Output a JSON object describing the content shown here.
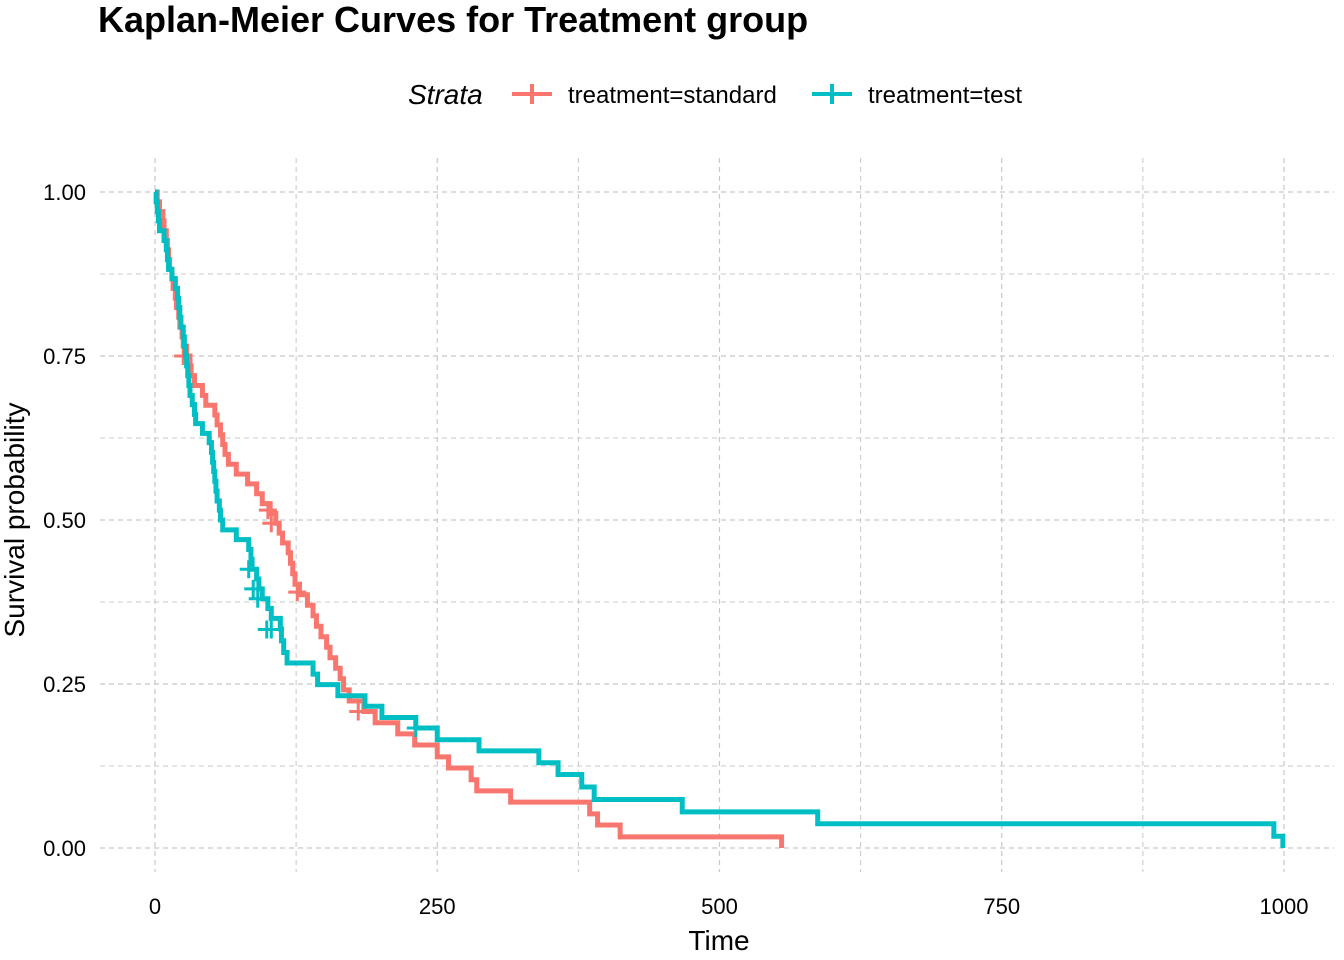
{
  "chart_data": {
    "type": "line",
    "title": "Kaplan-Meier Curves for Treatment group",
    "xlabel": "Time",
    "ylabel": "Survival probability",
    "xlim": [
      0,
      1000
    ],
    "ylim": [
      0,
      1
    ],
    "x_ticks": [
      0,
      250,
      500,
      750,
      1000
    ],
    "x_tick_labels": [
      "0",
      "250",
      "500",
      "750",
      "1000"
    ],
    "y_ticks": [
      0,
      0.25,
      0.5,
      0.75,
      1
    ],
    "y_tick_labels": [
      "0.00",
      "0.25",
      "0.50",
      "0.75",
      "1.00"
    ],
    "grid": true,
    "legend": {
      "title": "Strata",
      "position": "top"
    },
    "series": [
      {
        "name": "treatment=standard",
        "color": "#F8766D",
        "step": [
          [
            0,
            1.0
          ],
          [
            2,
            0.985
          ],
          [
            4,
            0.97
          ],
          [
            7,
            0.956
          ],
          [
            8,
            0.941
          ],
          [
            10,
            0.926
          ],
          [
            11,
            0.912
          ],
          [
            12,
            0.897
          ],
          [
            13,
            0.882
          ],
          [
            15,
            0.868
          ],
          [
            16,
            0.853
          ],
          [
            18,
            0.838
          ],
          [
            19,
            0.824
          ],
          [
            21,
            0.809
          ],
          [
            22,
            0.794
          ],
          [
            24,
            0.779
          ],
          [
            25,
            0.765
          ],
          [
            28,
            0.75
          ],
          [
            31,
            0.735
          ],
          [
            32,
            0.72
          ],
          [
            35,
            0.705
          ],
          [
            42,
            0.69
          ],
          [
            45,
            0.675
          ],
          [
            53,
            0.66
          ],
          [
            55,
            0.645
          ],
          [
            58,
            0.63
          ],
          [
            60,
            0.615
          ],
          [
            62,
            0.6
          ],
          [
            65,
            0.585
          ],
          [
            72,
            0.57
          ],
          [
            82,
            0.555
          ],
          [
            90,
            0.54
          ],
          [
            95,
            0.525
          ],
          [
            102,
            0.51
          ],
          [
            107,
            0.495
          ],
          [
            110,
            0.48
          ],
          [
            113,
            0.465
          ],
          [
            118,
            0.45
          ],
          [
            120,
            0.434
          ],
          [
            122,
            0.418
          ],
          [
            124,
            0.402
          ],
          [
            128,
            0.386
          ],
          [
            135,
            0.37
          ],
          [
            140,
            0.354
          ],
          [
            143,
            0.338
          ],
          [
            147,
            0.322
          ],
          [
            152,
            0.306
          ],
          [
            155,
            0.29
          ],
          [
            160,
            0.274
          ],
          [
            164,
            0.258
          ],
          [
            167,
            0.241
          ],
          [
            172,
            0.224
          ],
          [
            185,
            0.208
          ],
          [
            195,
            0.191
          ],
          [
            215,
            0.174
          ],
          [
            230,
            0.157
          ],
          [
            250,
            0.139
          ],
          [
            260,
            0.122
          ],
          [
            280,
            0.104
          ],
          [
            285,
            0.087
          ],
          [
            315,
            0.07
          ],
          [
            385,
            0.052
          ],
          [
            392,
            0.035
          ],
          [
            412,
            0.017
          ],
          [
            555,
            0.0
          ]
        ],
        "censored": [
          [
            25,
            0.75
          ],
          [
            100,
            0.515
          ],
          [
            103,
            0.495
          ],
          [
            126,
            0.39
          ],
          [
            180,
            0.208
          ]
        ]
      },
      {
        "name": "treatment=test",
        "color": "#00BFC4",
        "step": [
          [
            0,
            1.0
          ],
          [
            1,
            0.985
          ],
          [
            2,
            0.97
          ],
          [
            3,
            0.956
          ],
          [
            4,
            0.941
          ],
          [
            8,
            0.926
          ],
          [
            10,
            0.912
          ],
          [
            11,
            0.897
          ],
          [
            12,
            0.882
          ],
          [
            15,
            0.868
          ],
          [
            18,
            0.853
          ],
          [
            20,
            0.838
          ],
          [
            21,
            0.824
          ],
          [
            22,
            0.809
          ],
          [
            23,
            0.794
          ],
          [
            25,
            0.779
          ],
          [
            26,
            0.765
          ],
          [
            27,
            0.75
          ],
          [
            28,
            0.735
          ],
          [
            29,
            0.72
          ],
          [
            30,
            0.705
          ],
          [
            31,
            0.69
          ],
          [
            33,
            0.676
          ],
          [
            35,
            0.661
          ],
          [
            36,
            0.647
          ],
          [
            42,
            0.632
          ],
          [
            48,
            0.618
          ],
          [
            50,
            0.603
          ],
          [
            51,
            0.588
          ],
          [
            52,
            0.574
          ],
          [
            53,
            0.559
          ],
          [
            54,
            0.544
          ],
          [
            55,
            0.529
          ],
          [
            57,
            0.515
          ],
          [
            58,
            0.5
          ],
          [
            60,
            0.485
          ],
          [
            72,
            0.47
          ],
          [
            83,
            0.455
          ],
          [
            85,
            0.44
          ],
          [
            86,
            0.425
          ],
          [
            90,
            0.41
          ],
          [
            92,
            0.395
          ],
          [
            95,
            0.38
          ],
          [
            100,
            0.365
          ],
          [
            103,
            0.35
          ],
          [
            111,
            0.334
          ],
          [
            112,
            0.316
          ],
          [
            114,
            0.298
          ],
          [
            117,
            0.282
          ],
          [
            140,
            0.265
          ],
          [
            144,
            0.249
          ],
          [
            162,
            0.232
          ],
          [
            186,
            0.216
          ],
          [
            201,
            0.199
          ],
          [
            231,
            0.183
          ],
          [
            250,
            0.165
          ],
          [
            287,
            0.148
          ],
          [
            340,
            0.13
          ],
          [
            357,
            0.112
          ],
          [
            378,
            0.093
          ],
          [
            389,
            0.074
          ],
          [
            467,
            0.055
          ],
          [
            587,
            0.037
          ],
          [
            991,
            0.018
          ],
          [
            999,
            0.0
          ]
        ],
        "censored": [
          [
            83,
            0.425
          ],
          [
            87,
            0.395
          ],
          [
            91,
            0.38
          ],
          [
            99,
            0.333
          ],
          [
            103,
            0.333
          ],
          [
            231,
            0.183
          ]
        ]
      }
    ]
  }
}
